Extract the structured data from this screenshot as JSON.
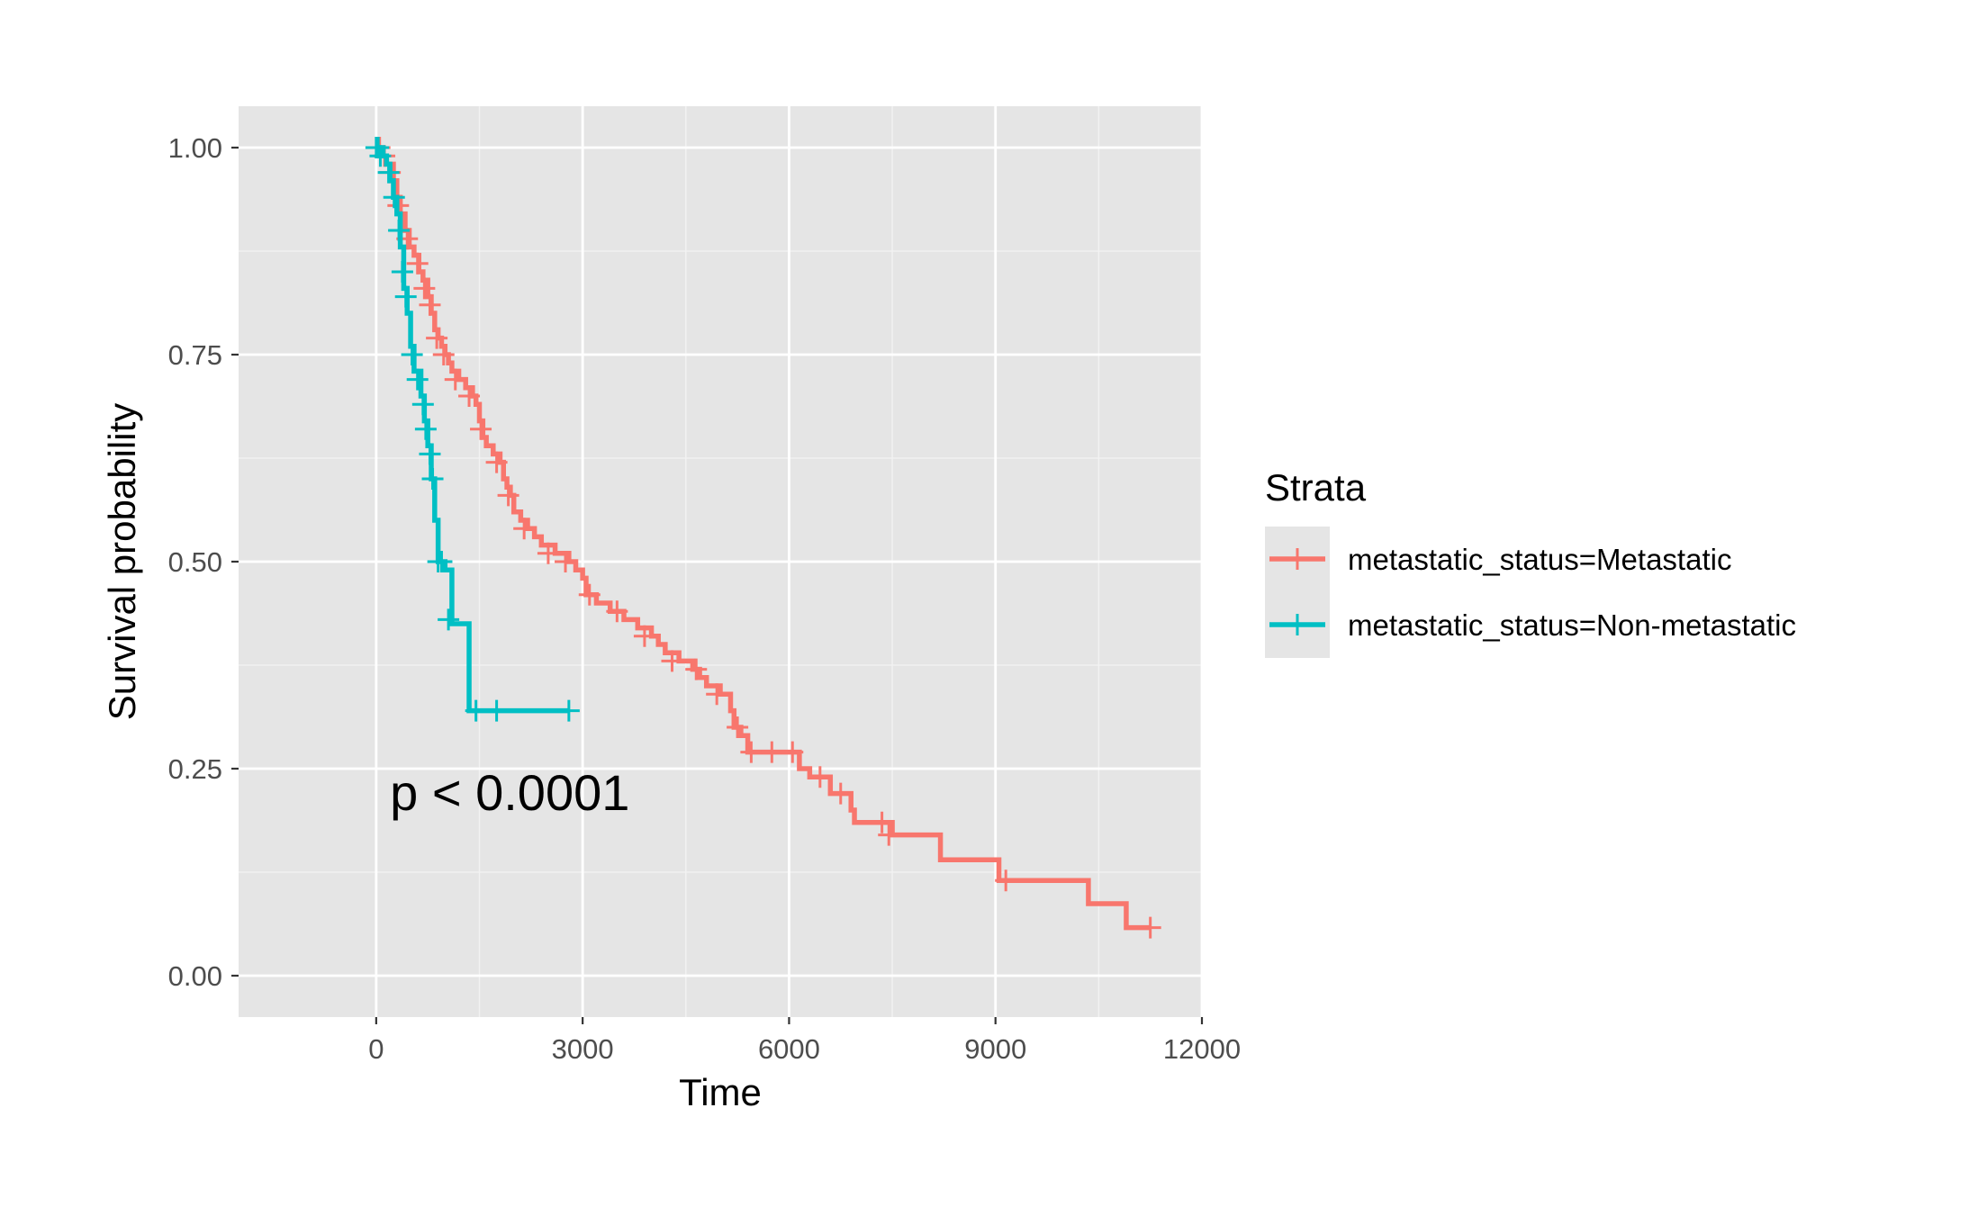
{
  "chart_data": {
    "type": "line",
    "subtype": "kaplan-meier step",
    "xlabel": "Time",
    "ylabel": "Survival probability",
    "xlim": [
      -2000,
      12000
    ],
    "ylim": [
      -0.05,
      1.05
    ],
    "xticks": [
      0,
      3000,
      6000,
      9000,
      12000
    ],
    "yticks": [
      0,
      0.25,
      0.5,
      0.75,
      1.0
    ],
    "xtick_labels": [
      "0",
      "3000",
      "6000",
      "9000",
      "12000"
    ],
    "ytick_labels": [
      "0.00",
      "0.25",
      "0.50",
      "0.75",
      "1.00"
    ],
    "grid": true,
    "annotation": {
      "text": "p < 0.0001",
      "x": 200,
      "y": 0.2
    },
    "legend": {
      "title": "Strata",
      "position": "right"
    },
    "series": [
      {
        "name": "metastatic_status=Metastatic",
        "color": "#F8766D",
        "steps": [
          [
            0,
            1.0
          ],
          [
            80,
            0.99
          ],
          [
            150,
            0.98
          ],
          [
            250,
            0.96
          ],
          [
            300,
            0.94
          ],
          [
            350,
            0.92
          ],
          [
            420,
            0.9
          ],
          [
            480,
            0.88
          ],
          [
            550,
            0.87
          ],
          [
            620,
            0.85
          ],
          [
            680,
            0.84
          ],
          [
            750,
            0.82
          ],
          [
            800,
            0.8
          ],
          [
            850,
            0.78
          ],
          [
            900,
            0.77
          ],
          [
            950,
            0.76
          ],
          [
            1000,
            0.75
          ],
          [
            1050,
            0.74
          ],
          [
            1100,
            0.73
          ],
          [
            1200,
            0.72
          ],
          [
            1300,
            0.71
          ],
          [
            1400,
            0.7
          ],
          [
            1450,
            0.69
          ],
          [
            1500,
            0.67
          ],
          [
            1550,
            0.65
          ],
          [
            1600,
            0.64
          ],
          [
            1700,
            0.63
          ],
          [
            1800,
            0.62
          ],
          [
            1850,
            0.6
          ],
          [
            1900,
            0.59
          ],
          [
            1950,
            0.58
          ],
          [
            2000,
            0.56
          ],
          [
            2100,
            0.55
          ],
          [
            2200,
            0.54
          ],
          [
            2300,
            0.53
          ],
          [
            2400,
            0.52
          ],
          [
            2600,
            0.51
          ],
          [
            2800,
            0.5
          ],
          [
            2900,
            0.49
          ],
          [
            3000,
            0.48
          ],
          [
            3050,
            0.46
          ],
          [
            3200,
            0.45
          ],
          [
            3400,
            0.44
          ],
          [
            3600,
            0.43
          ],
          [
            3800,
            0.42
          ],
          [
            4000,
            0.41
          ],
          [
            4100,
            0.4
          ],
          [
            4200,
            0.39
          ],
          [
            4400,
            0.38
          ],
          [
            4600,
            0.37
          ],
          [
            4700,
            0.36
          ],
          [
            4800,
            0.35
          ],
          [
            5000,
            0.34
          ],
          [
            5150,
            0.32
          ],
          [
            5200,
            0.3
          ],
          [
            5300,
            0.29
          ],
          [
            5400,
            0.27
          ],
          [
            6150,
            0.25
          ],
          [
            6300,
            0.24
          ],
          [
            6600,
            0.22
          ],
          [
            6900,
            0.2
          ],
          [
            6950,
            0.185
          ],
          [
            7500,
            0.17
          ],
          [
            8200,
            0.14
          ],
          [
            9050,
            0.115
          ],
          [
            10350,
            0.087
          ],
          [
            10900,
            0.058
          ],
          [
            11250,
            0.058
          ]
        ],
        "censors": [
          [
            50,
            1.0
          ],
          [
            120,
            0.99
          ],
          [
            200,
            0.97
          ],
          [
            320,
            0.93
          ],
          [
            450,
            0.89
          ],
          [
            600,
            0.86
          ],
          [
            700,
            0.83
          ],
          [
            780,
            0.81
          ],
          [
            880,
            0.77
          ],
          [
            980,
            0.75
          ],
          [
            1150,
            0.72
          ],
          [
            1350,
            0.7
          ],
          [
            1520,
            0.66
          ],
          [
            1750,
            0.62
          ],
          [
            1920,
            0.58
          ],
          [
            2150,
            0.54
          ],
          [
            2500,
            0.51
          ],
          [
            2750,
            0.5
          ],
          [
            3100,
            0.46
          ],
          [
            3500,
            0.44
          ],
          [
            3900,
            0.41
          ],
          [
            4300,
            0.38
          ],
          [
            4650,
            0.37
          ],
          [
            4950,
            0.34
          ],
          [
            5250,
            0.3
          ],
          [
            5450,
            0.27
          ],
          [
            5750,
            0.27
          ],
          [
            6050,
            0.27
          ],
          [
            6450,
            0.24
          ],
          [
            6750,
            0.22
          ],
          [
            7350,
            0.185
          ],
          [
            7450,
            0.17
          ],
          [
            9150,
            0.115
          ],
          [
            11250,
            0.058
          ]
        ]
      },
      {
        "name": "metastatic_status=Non-metastatic",
        "color": "#00BFC4",
        "steps": [
          [
            0,
            1.0
          ],
          [
            100,
            0.99
          ],
          [
            150,
            0.98
          ],
          [
            200,
            0.96
          ],
          [
            250,
            0.94
          ],
          [
            300,
            0.92
          ],
          [
            350,
            0.88
          ],
          [
            400,
            0.83
          ],
          [
            450,
            0.8
          ],
          [
            500,
            0.76
          ],
          [
            550,
            0.73
          ],
          [
            650,
            0.7
          ],
          [
            700,
            0.67
          ],
          [
            750,
            0.64
          ],
          [
            800,
            0.6
          ],
          [
            850,
            0.55
          ],
          [
            900,
            0.5
          ],
          [
            1000,
            0.49
          ],
          [
            1100,
            0.425
          ],
          [
            1350,
            0.32
          ],
          [
            2800,
            0.32
          ]
        ],
        "censors": [
          [
            0,
            1.0
          ],
          [
            30,
            1.0
          ],
          [
            60,
            0.99
          ],
          [
            180,
            0.97
          ],
          [
            260,
            0.94
          ],
          [
            330,
            0.9
          ],
          [
            380,
            0.85
          ],
          [
            430,
            0.82
          ],
          [
            520,
            0.75
          ],
          [
            600,
            0.72
          ],
          [
            680,
            0.69
          ],
          [
            720,
            0.66
          ],
          [
            780,
            0.63
          ],
          [
            820,
            0.6
          ],
          [
            900,
            0.5
          ],
          [
            950,
            0.5
          ],
          [
            1050,
            0.43
          ],
          [
            1450,
            0.32
          ],
          [
            1750,
            0.32
          ],
          [
            2800,
            0.32
          ]
        ]
      }
    ]
  }
}
